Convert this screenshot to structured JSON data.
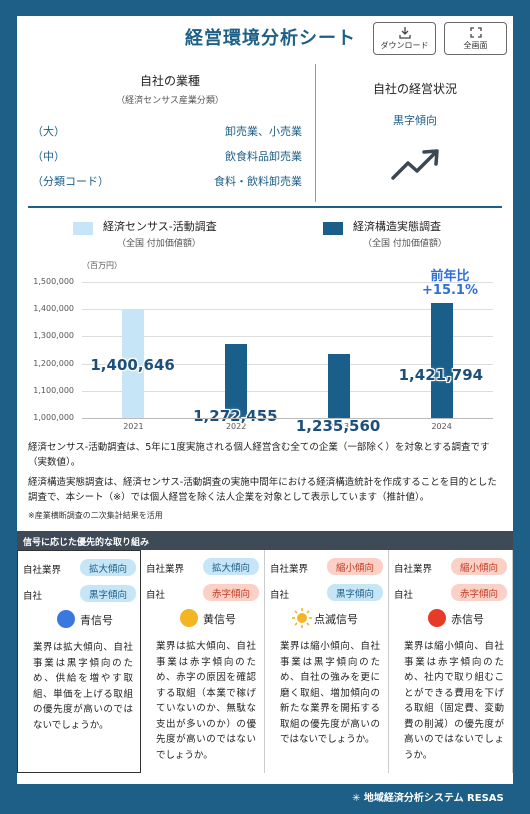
{
  "header": {
    "title": "経営環境分析シート"
  },
  "toolbar": {
    "download_label": "ダウンロード",
    "fullscreen_label": "全画面"
  },
  "industry": {
    "heading": "自社の業種",
    "subheading": "（経済センサス産業分類）",
    "rows": [
      {
        "key": "（大）",
        "value": "卸売業、小売業"
      },
      {
        "key": "（中）",
        "value": "飲食料品卸売業"
      },
      {
        "key": "（分類コード）",
        "value": "食料・飲料卸売業"
      }
    ]
  },
  "status": {
    "heading": "自社の経営状況",
    "trend": "黒字傾向",
    "trend_icon": "trend-up-icon"
  },
  "legend": [
    {
      "label": "経済センサス-活動調査",
      "sub": "（全国 付加価値額）",
      "color": "#c6e6f7"
    },
    {
      "label": "経済構造実態調査",
      "sub": "（全国 付加価値額）",
      "color": "#1a5f8a"
    }
  ],
  "chart_data": {
    "type": "bar",
    "unit_label": "（百万円）",
    "categories": [
      "2021",
      "2022",
      "2023",
      "2024"
    ],
    "series": [
      {
        "name": "経済センサス-活動調査",
        "values": [
          1400646,
          null,
          null,
          null
        ],
        "color": "#c6e6f7"
      },
      {
        "name": "経済構造実態調査",
        "values": [
          null,
          1272455,
          1235560,
          1421794
        ],
        "color": "#1a5f8a"
      }
    ],
    "data_labels": [
      "1,400,646",
      "1,272,455",
      "1,235,560",
      "1,421,794"
    ],
    "yticks": [
      "1,000,000",
      "1,100,000",
      "1,200,000",
      "1,300,000",
      "1,400,000",
      "1,500,000"
    ],
    "ylim": [
      1000000,
      1500000
    ],
    "annotation": {
      "line1": "前年比",
      "line2": "+15.1%"
    }
  },
  "notes": {
    "p1": "経済センサス-活動調査は、5年に1度実施される個人経営含む全ての企業（一部除く）を対象とする調査です（実数値）。",
    "p2": "経済構造実態調査は、経済センサス-活動調査の実施中間年における経済構造統計を作成することを目的とした調査で、本シート（※）では個人経営を除く法人企業を対象として表示しています（推計値）。",
    "p3": "※産業横断調査の二次集計結果を活用"
  },
  "signals": {
    "heading": "信号に応じた優先的な取り組み",
    "industry_label": "自社業界",
    "company_label": "自社",
    "cols": [
      {
        "industry": "拡大傾向",
        "company": "黒字傾向",
        "name": "青信号",
        "color": "#3a78e0",
        "icon": "blue-signal-icon",
        "desc": "業界は拡大傾向、自社事業は黒字傾向のため、供給を増やす取組、単価を上げる取組の優先度が高いのではないでしょうか。"
      },
      {
        "industry": "拡大傾向",
        "company": "赤字傾向",
        "name": "黄信号",
        "color": "#f4b522",
        "icon": "yellow-signal-icon",
        "desc": "業界は拡大傾向、自社事業は赤字傾向のため、赤字の原因を確認する取組（本業で稼げていないのか、無駄な支出が多いのか）の優先度が高いのではないでしょうか。"
      },
      {
        "industry": "縮小傾向",
        "company": "黒字傾向",
        "name": "点滅信号",
        "color": "#f4b522",
        "icon": "blinking-signal-icon",
        "desc": "業界は縮小傾向、自社事業は黒字傾向のため、自社の強みを更に磨く取組、増加傾向の新たな業界を開拓する取組の優先度が高いのではないでしょうか。"
      },
      {
        "industry": "縮小傾向",
        "company": "赤字傾向",
        "name": "赤信号",
        "color": "#e63b26",
        "icon": "red-signal-icon",
        "desc": "業界は縮小傾向、自社事業は赤字傾向のため、社内で取り組むことができる費用を下げる取組（固定費、変動費の削減）の優先度が高いのではないでしょうか。"
      }
    ]
  },
  "footer": {
    "brand": "地域経済分析システム RESAS",
    "logo_icon": "resas-logo-icon"
  }
}
